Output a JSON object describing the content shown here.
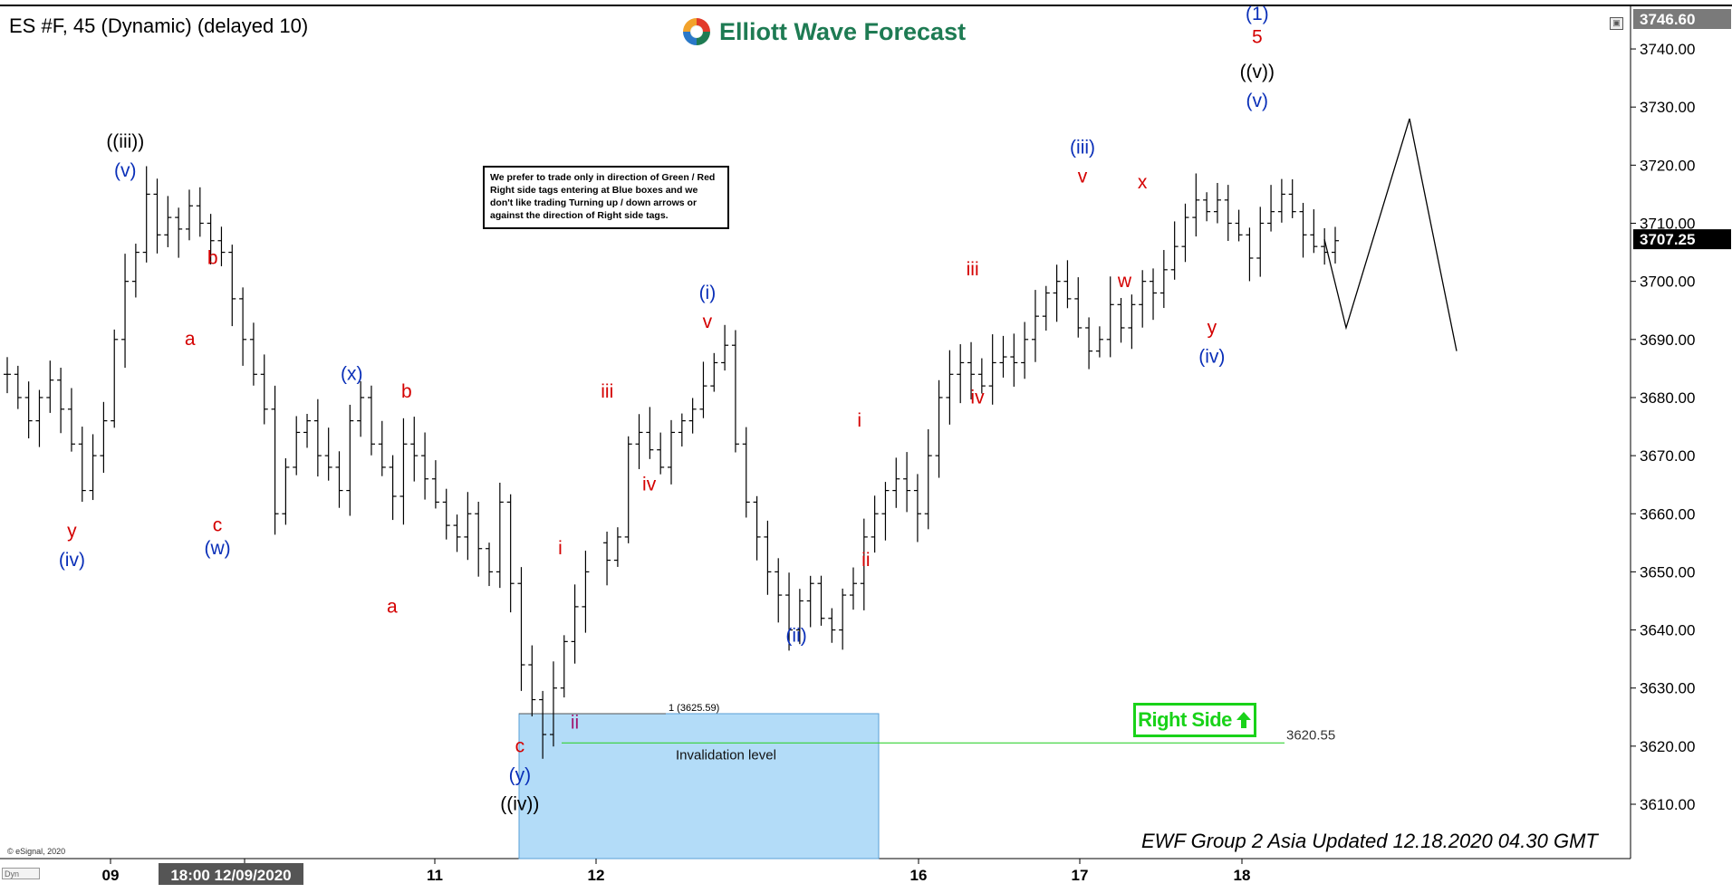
{
  "header": {
    "symbol_title": "ES #F, 45 (Dynamic) (delayed 10)",
    "logo_text": "Elliott Wave Forecast",
    "window_icon": "restore-icon"
  },
  "disclaimer_text": "We prefer to trade only in direction of Green / Red Right side tags entering at Blue boxes and we don't like trading Turning up / down arrows or against the direction of Right side tags.",
  "right_side_tag": {
    "label": "Right Side",
    "arrow": "arrow-up-icon",
    "color": "#19d219"
  },
  "footer": {
    "updated_text": "EWF Group 2 Asia Updated 12.18.2020 04.30 GMT",
    "copyright": "© eSignal, 2020",
    "dyn_label": "Dyn"
  },
  "colors": {
    "blue_box": "#b3dcf8",
    "invalidation_line": "#35d235",
    "label_red": "#d40000",
    "label_blue": "#0a2fb8",
    "label_black": "#000000",
    "price_bar": "#000000"
  },
  "chart_data": {
    "type": "ohlc",
    "title": "ES #F, 45 (Dynamic) (delayed 10)",
    "ylim": [
      3600,
      3750
    ],
    "y_ticks": [
      "3610.00",
      "3620.00",
      "3630.00",
      "3640.00",
      "3650.00",
      "3660.00",
      "3670.00",
      "3680.00",
      "3690.00",
      "3700.00",
      "3710.00",
      "3720.00",
      "3730.00",
      "3740.00"
    ],
    "price_tags": {
      "top": "3746.60",
      "current": "3707.25"
    },
    "x_ticks": [
      "09",
      "18:00 12/09/2020",
      "11",
      "12",
      "16",
      "17",
      "18"
    ],
    "blue_box": {
      "from": 3625.59,
      "to": 3600,
      "label": "1 (3625.59)"
    },
    "invalidation": {
      "value": 3620.55,
      "label": "3620.55",
      "text": "Invalidation level"
    },
    "price_path": [
      3684,
      3680,
      3676,
      3680,
      3683,
      3678,
      3672,
      3664,
      3670,
      3676,
      3690,
      3700,
      3705,
      3715,
      3708,
      3711,
      3709,
      3713,
      3710,
      3707,
      3705,
      3697,
      3690,
      3684,
      3678,
      3660,
      3668,
      3674,
      3676,
      3670,
      3668,
      3664,
      3676,
      3680,
      3672,
      3668,
      3663,
      3672,
      3670,
      3666,
      3662,
      3658,
      3656,
      3660,
      3654,
      3650,
      3662,
      3648,
      3634,
      3628,
      3622,
      3630,
      3638,
      3644,
      3650,
      3655,
      3652,
      3656,
      3672,
      3674,
      3671,
      3668,
      3674,
      3676,
      3678,
      3682,
      3686,
      3689,
      3672,
      3662,
      3656,
      3650,
      3646,
      3640,
      3645,
      3648,
      3642,
      3640,
      3646,
      3648,
      3656,
      3660,
      3664,
      3666,
      3664,
      3660,
      3670,
      3680,
      3684,
      3686,
      3684,
      3682,
      3686,
      3687,
      3686,
      3690,
      3694,
      3698,
      3700,
      3697,
      3692,
      3688,
      3690,
      3696,
      3692,
      3696,
      3700,
      3698,
      3702,
      3706,
      3711,
      3714,
      3712,
      3714,
      3710,
      3708,
      3704,
      3710,
      3712,
      3715,
      3712,
      3708,
      3706,
      3705,
      3707
    ],
    "projection": [
      3707.25,
      3692,
      3728,
      3688
    ],
    "wave_labels": [
      {
        "text": "y",
        "color": "red",
        "x": -0.05,
        "y": 3656
      },
      {
        "text": "(iv)",
        "color": "blue",
        "x": -0.05,
        "y": 3651
      },
      {
        "text": "((iii))",
        "color": "black",
        "x": 0.28,
        "y": 3723
      },
      {
        "text": "(v)",
        "color": "blue",
        "x": 0.28,
        "y": 3718
      },
      {
        "text": "b",
        "color": "red",
        "x": 0.82,
        "y": 3703
      },
      {
        "text": "a",
        "color": "red",
        "x": 0.68,
        "y": 3689
      },
      {
        "text": "c",
        "color": "red",
        "x": 0.85,
        "y": 3657
      },
      {
        "text": "(w)",
        "color": "blue",
        "x": 0.85,
        "y": 3653
      },
      {
        "text": "(x)",
        "color": "blue",
        "x": 1.68,
        "y": 3683
      },
      {
        "text": "b",
        "color": "red",
        "x": 2.02,
        "y": 3680
      },
      {
        "text": "a",
        "color": "red",
        "x": 1.93,
        "y": 3643
      },
      {
        "text": "i",
        "color": "red",
        "x": 2.97,
        "y": 3653
      },
      {
        "text": "c",
        "color": "red",
        "x": 2.72,
        "y": 3619
      },
      {
        "text": "(y)",
        "color": "blue",
        "x": 2.72,
        "y": 3614
      },
      {
        "text": "((iv))",
        "color": "black",
        "x": 2.72,
        "y": 3609
      },
      {
        "text": "ii",
        "color": "purple",
        "x": 3.06,
        "y": 3623
      },
      {
        "text": "iii",
        "color": "red",
        "x": 3.26,
        "y": 3680
      },
      {
        "text": "iv",
        "color": "red",
        "x": 3.52,
        "y": 3664
      },
      {
        "text": "(i)",
        "color": "blue",
        "x": 3.88,
        "y": 3697
      },
      {
        "text": "v",
        "color": "red",
        "x": 3.88,
        "y": 3692
      },
      {
        "text": "(ii)",
        "color": "blue",
        "x": 4.43,
        "y": 3638
      },
      {
        "text": "i",
        "color": "red",
        "x": 4.82,
        "y": 3675
      },
      {
        "text": "ii",
        "color": "red",
        "x": 4.86,
        "y": 3651
      },
      {
        "text": "iii",
        "color": "red",
        "x": 5.52,
        "y": 3701
      },
      {
        "text": "iv",
        "color": "red",
        "x": 5.55,
        "y": 3679
      },
      {
        "text": "(iii)",
        "color": "blue",
        "x": 6.2,
        "y": 3722
      },
      {
        "text": "v",
        "color": "red",
        "x": 6.2,
        "y": 3717
      },
      {
        "text": "x",
        "color": "red",
        "x": 6.57,
        "y": 3716
      },
      {
        "text": "w",
        "color": "red",
        "x": 6.46,
        "y": 3699
      },
      {
        "text": "y",
        "color": "red",
        "x": 7.0,
        "y": 3691
      },
      {
        "text": "(iv)",
        "color": "blue",
        "x": 7.0,
        "y": 3686
      },
      {
        "text": "(1)",
        "color": "blue",
        "x": 7.28,
        "y": 3745
      },
      {
        "text": "5",
        "color": "red",
        "x": 7.28,
        "y": 3741
      },
      {
        "text": "((v))",
        "color": "black",
        "x": 7.28,
        "y": 3735
      },
      {
        "text": "(v)",
        "color": "blue",
        "x": 7.28,
        "y": 3730
      }
    ]
  }
}
